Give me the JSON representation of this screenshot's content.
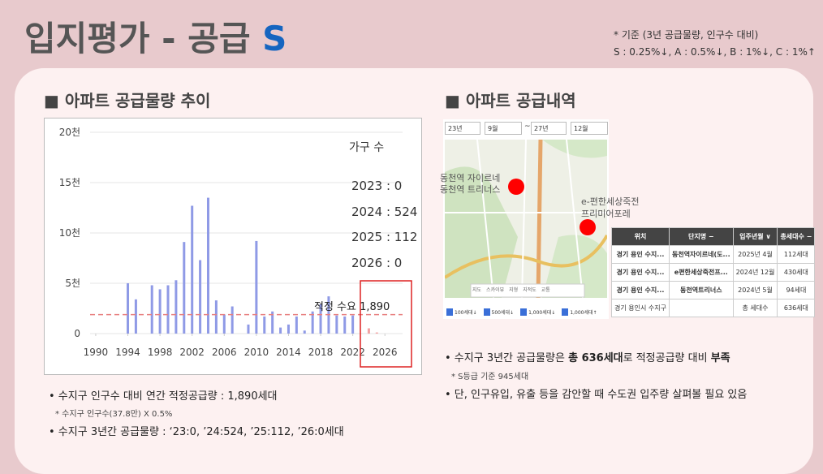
{
  "header": {
    "title": "입지평가 - 공급 ",
    "title_accent": "S",
    "note_lines": [
      "* 기준 (3년 공급물량, 인구수 대비)",
      "S : 0.25%↓, A : 0.5%↓, B : 1%↓, C : 1%↑"
    ]
  },
  "left": {
    "heading": "■ 아파트 공급물량 추이",
    "chart_data": {
      "type": "bar",
      "x": [
        1994,
        1995,
        1997,
        1998,
        1999,
        2000,
        2001,
        2002,
        2003,
        2004,
        2005,
        2006,
        2007,
        2009,
        2010,
        2011,
        2012,
        2013,
        2014,
        2015,
        2016,
        2017,
        2018,
        2019,
        2020,
        2021,
        2022,
        2023,
        2024,
        2025,
        2026
      ],
      "values": [
        5000,
        3400,
        4800,
        4400,
        4800,
        5300,
        9100,
        12700,
        7300,
        13500,
        3300,
        1900,
        2700,
        900,
        9200,
        1700,
        2200,
        600,
        900,
        1700,
        300,
        2200,
        2900,
        3700,
        1800,
        1700,
        1800,
        0,
        524,
        112,
        0
      ],
      "bar_colors": [
        "#8f9ae6",
        "#8f9ae6",
        "#8f9ae6",
        "#8f9ae6",
        "#8f9ae6",
        "#8f9ae6",
        "#8f9ae6",
        "#8f9ae6",
        "#8f9ae6",
        "#8f9ae6",
        "#8f9ae6",
        "#8f9ae6",
        "#8f9ae6",
        "#8f9ae6",
        "#8f9ae6",
        "#8f9ae6",
        "#8f9ae6",
        "#8f9ae6",
        "#8f9ae6",
        "#8f9ae6",
        "#8f9ae6",
        "#8f9ae6",
        "#8f9ae6",
        "#8f9ae6",
        "#8f9ae6",
        "#8f9ae6",
        "#8f9ae6",
        "#f2a3a3",
        "#f2a3a3",
        "#f2a3a3",
        "#f2a3a3"
      ],
      "xlim": [
        1989.3,
        2028.2
      ],
      "xticks": [
        1990,
        1994,
        1998,
        2002,
        2006,
        2010,
        2014,
        2018,
        2022,
        2026
      ],
      "ylim": [
        0,
        20000
      ],
      "yticks": [
        0,
        {
          "value": 5000,
          "label": "5천"
        },
        {
          "value": 10000,
          "label": "10천"
        },
        {
          "value": 15000,
          "label": "15천"
        },
        {
          "value": 20000,
          "label": "20천"
        }
      ],
      "grid": true,
      "reference": {
        "value": 1890,
        "label": "적정 수요 1,890",
        "color": "#e88080"
      },
      "annotations": [
        "가구 수",
        "2023 : 0",
        "2024 : 524",
        "2025 : 112",
        "2026 : 0"
      ]
    },
    "bullets": [
      "• 수지구 인구수 대비 연간 적정공급량 : 1,890세대",
      "* 수지구 인구수(37.8만) X 0.5%",
      "• 수지구 3년간 공급물량 : ‘23:0, ’24:524, ’25:112, ’26:0세대"
    ]
  },
  "right": {
    "heading": "■ 아파트 공급내역",
    "filters": [
      "23년",
      "9월",
      "~",
      "27년",
      "12월"
    ],
    "map_labels": [
      "동천역 자이르네",
      "동천역 트리너스",
      "e-편한세상죽전",
      "프리미어포레"
    ],
    "map_tabs": [
      "지도",
      "스카이뷰",
      "지형",
      "지적도",
      "교통"
    ],
    "map_legend": [
      "100세대↓",
      "500세대↓",
      "1,000세대↓",
      "1,000세대↑"
    ],
    "table": {
      "headers": [
        "위치",
        "단지명 −",
        "입주년월 ∨",
        "총세대수 −"
      ],
      "rows": [
        [
          "경기 용인 수지...",
          "동천역자이르네(도...",
          "2025년 4월",
          "112세대"
        ],
        [
          "경기 용인 수지...",
          "e편한세상죽전프...",
          "2024년 12월",
          "430세대"
        ],
        [
          "경기 용인 수지...",
          "동천역트리너스",
          "2024년 5월",
          "94세대"
        ],
        [
          "경기 용인시 수지구",
          "",
          "총 세대수",
          "636세대"
        ]
      ]
    },
    "bullets": [
      {
        "pre": "• 수지구 3년간 공급물량은 ",
        "b1": "총 636세대",
        "mid": "로 적정공급량 대비 ",
        "b2": "부족"
      },
      "* S등급 기준 945세대",
      "• 단, 인구유입, 유출 등을 감안할 때 수도권 입주량 살펴볼 필요 있음"
    ]
  }
}
